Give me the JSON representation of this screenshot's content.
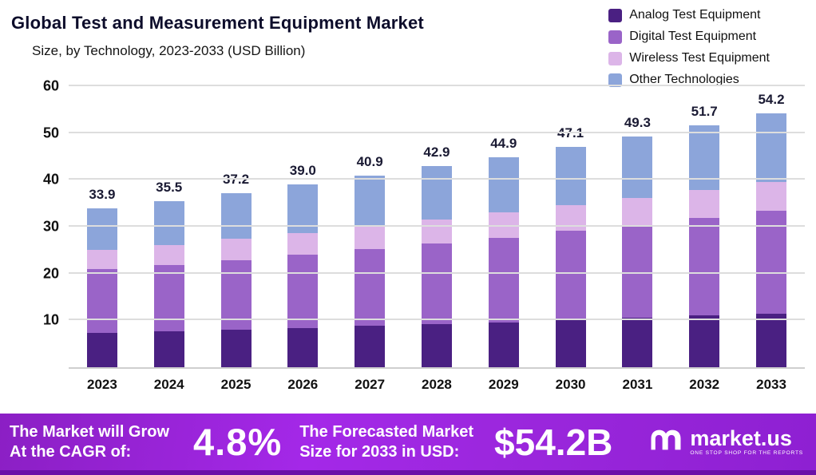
{
  "header": {
    "title": "Global Test and Measurement Equipment Market",
    "subtitle": "Size, by Technology, 2023-2033 (USD Billion)"
  },
  "chart_data": {
    "type": "bar",
    "stacked": true,
    "title": "Global Test and Measurement Equipment Market Size, by Technology, 2023-2033 (USD Billion)",
    "categories": [
      "2023",
      "2024",
      "2025",
      "2026",
      "2027",
      "2028",
      "2029",
      "2030",
      "2031",
      "2032",
      "2033"
    ],
    "series": [
      {
        "name": "Analog Test Equipment",
        "color": "#4a2082",
        "values": [
          7.3,
          7.6,
          8.0,
          8.4,
          8.8,
          9.2,
          9.6,
          10.1,
          10.5,
          11.0,
          11.5
        ]
      },
      {
        "name": "Digital Test Equipment",
        "color": "#9a64c8",
        "values": [
          13.6,
          14.2,
          14.9,
          15.6,
          16.4,
          17.2,
          18.1,
          19.0,
          19.9,
          20.9,
          21.9
        ]
      },
      {
        "name": "Wireless Test Equipment",
        "color": "#dcb5e8",
        "values": [
          4.1,
          4.3,
          4.5,
          4.7,
          4.9,
          5.1,
          5.3,
          5.5,
          5.7,
          5.9,
          6.1
        ]
      },
      {
        "name": "Other Technologies",
        "color": "#8ca5da",
        "values": [
          8.9,
          9.4,
          9.8,
          10.3,
          10.8,
          11.4,
          11.9,
          12.5,
          13.2,
          13.9,
          14.7
        ]
      }
    ],
    "totals": [
      33.9,
      35.5,
      37.2,
      39.0,
      40.9,
      42.9,
      44.9,
      47.1,
      49.3,
      51.7,
      54.2
    ],
    "total_labels": [
      "33.9",
      "35.5",
      "37.2",
      "39.0",
      "40.9",
      "42.9",
      "44.9",
      "47.1",
      "49.3",
      "51.7",
      "54.2"
    ],
    "ylim": [
      0,
      60
    ],
    "yticks": [
      10,
      20,
      30,
      40,
      50,
      60
    ],
    "grid": true,
    "legend_position": "top-right"
  },
  "banner": {
    "cagr_label_line1": "The Market will Grow",
    "cagr_label_line2": "At the CAGR of:",
    "cagr_value": "4.8%",
    "forecast_label_line1": "The Forecasted Market",
    "forecast_label_line2": "Size for 2033 in USD:",
    "forecast_value": "$54.2B",
    "brand": "market.us",
    "brand_tagline": "ONE STOP SHOP FOR THE REPORTS"
  },
  "colors": {
    "banner_purple": "#9b27dd",
    "banner_edge": "#6a10a8",
    "title_text": "#0d0d2b",
    "gridline": "#dddddd"
  }
}
